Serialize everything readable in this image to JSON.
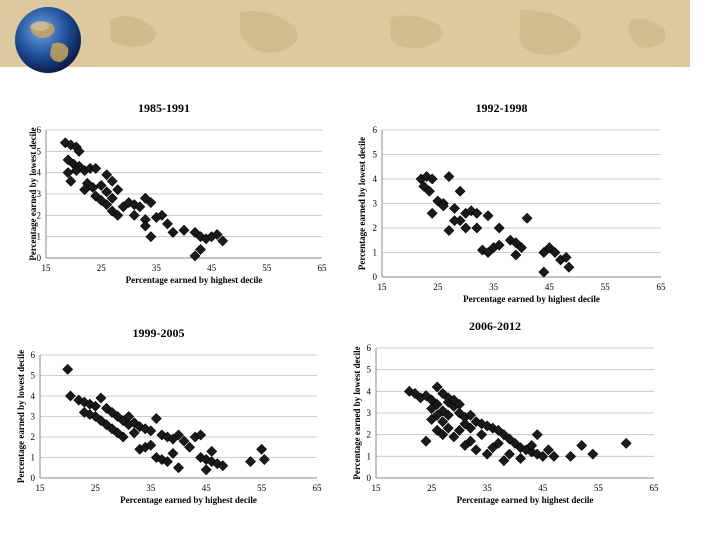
{
  "slide": {
    "title_banner": "world-map banner",
    "globe": "globe-icon"
  },
  "colors": {
    "banner": "#d9c89b",
    "marker": "#1a1a1a",
    "grid": "#bfbfbf"
  },
  "chart_data": [
    {
      "type": "scatter",
      "title": "1985-1991",
      "xlabel": "Percentage earned by highest decile",
      "ylabel": "Percentage earned by lowest decile",
      "xlim": [
        15,
        65
      ],
      "ylim": [
        0,
        6
      ],
      "xticks": [
        15,
        25,
        35,
        45,
        55,
        65
      ],
      "yticks": [
        0,
        1,
        2,
        3,
        4,
        5,
        6
      ],
      "points": [
        [
          18.5,
          5.4
        ],
        [
          19.5,
          5.3
        ],
        [
          20.5,
          5.2
        ],
        [
          21,
          5.0
        ],
        [
          19,
          4.6
        ],
        [
          20,
          4.4
        ],
        [
          21,
          4.3
        ],
        [
          20.5,
          4.1
        ],
        [
          19,
          4.0
        ],
        [
          22,
          4.1
        ],
        [
          23,
          4.2
        ],
        [
          24,
          4.2
        ],
        [
          22.5,
          3.5
        ],
        [
          23.5,
          3.3
        ],
        [
          25,
          3.4
        ],
        [
          26,
          3.1
        ],
        [
          27,
          2.8
        ],
        [
          24,
          2.9
        ],
        [
          25,
          2.7
        ],
        [
          26,
          2.5
        ],
        [
          27,
          2.2
        ],
        [
          28,
          2.0
        ],
        [
          29,
          2.4
        ],
        [
          30,
          2.6
        ],
        [
          31,
          2.5
        ],
        [
          32,
          2.4
        ],
        [
          33,
          2.8
        ],
        [
          34,
          2.6
        ],
        [
          31,
          2.0
        ],
        [
          33,
          1.8
        ],
        [
          35,
          1.9
        ],
        [
          36,
          2.0
        ],
        [
          37,
          1.6
        ],
        [
          38,
          1.2
        ],
        [
          34,
          1.0
        ],
        [
          33,
          1.5
        ],
        [
          40,
          1.3
        ],
        [
          42,
          1.2
        ],
        [
          43,
          1.0
        ],
        [
          44,
          0.9
        ],
        [
          45,
          1.0
        ],
        [
          46,
          1.1
        ],
        [
          47,
          0.8
        ],
        [
          43,
          0.4
        ],
        [
          42,
          0.1
        ],
        [
          26,
          3.9
        ],
        [
          27,
          3.6
        ],
        [
          28,
          3.2
        ],
        [
          19.5,
          3.6
        ],
        [
          22,
          3.2
        ]
      ]
    },
    {
      "type": "scatter",
      "title": "1992-1998",
      "xlabel": "Percentage earned by highest decile",
      "ylabel": "Percentage earned by lowest decile",
      "xlim": [
        15,
        65
      ],
      "ylim": [
        0,
        6
      ],
      "xticks": [
        15,
        25,
        35,
        45,
        55,
        65
      ],
      "yticks": [
        0,
        1,
        2,
        3,
        4,
        5,
        6
      ],
      "points": [
        [
          22,
          4.0
        ],
        [
          23,
          4.1
        ],
        [
          24,
          4.0
        ],
        [
          22.5,
          3.7
        ],
        [
          23.5,
          3.5
        ],
        [
          25,
          3.1
        ],
        [
          26,
          3.0
        ],
        [
          27,
          4.1
        ],
        [
          28,
          2.8
        ],
        [
          29,
          3.5
        ],
        [
          30,
          2.6
        ],
        [
          31,
          2.7
        ],
        [
          29,
          2.3
        ],
        [
          32,
          2.0
        ],
        [
          33,
          1.1
        ],
        [
          34,
          1.0
        ],
        [
          35,
          1.2
        ],
        [
          36,
          1.3
        ],
        [
          34,
          2.5
        ],
        [
          32,
          2.6
        ],
        [
          30,
          2.0
        ],
        [
          27,
          1.9
        ],
        [
          24,
          2.6
        ],
        [
          28,
          2.3
        ],
        [
          38,
          1.5
        ],
        [
          39,
          1.4
        ],
        [
          40,
          1.2
        ],
        [
          41,
          2.4
        ],
        [
          39,
          0.9
        ],
        [
          44,
          1.0
        ],
        [
          45,
          1.2
        ],
        [
          46,
          1.0
        ],
        [
          47,
          0.7
        ],
        [
          48,
          0.8
        ],
        [
          48.5,
          0.4
        ],
        [
          44,
          0.2
        ],
        [
          36,
          2.0
        ],
        [
          26,
          2.9
        ]
      ]
    },
    {
      "type": "scatter",
      "title": "1999-2005",
      "xlabel": "Percentage earned by highest decile",
      "ylabel": "Percentage earned by lowest decile",
      "xlim": [
        15,
        65
      ],
      "ylim": [
        0,
        6
      ],
      "xticks": [
        15,
        25,
        35,
        45,
        55,
        65
      ],
      "yticks": [
        0,
        1,
        2,
        3,
        4,
        5,
        6
      ],
      "points": [
        [
          20,
          5.3
        ],
        [
          20.5,
          4.0
        ],
        [
          22,
          3.8
        ],
        [
          23,
          3.7
        ],
        [
          24,
          3.6
        ],
        [
          25,
          3.5
        ],
        [
          26,
          3.9
        ],
        [
          27,
          3.4
        ],
        [
          28,
          3.2
        ],
        [
          29,
          3.0
        ],
        [
          30,
          2.8
        ],
        [
          31,
          2.6
        ],
        [
          32,
          2.7
        ],
        [
          33,
          2.5
        ],
        [
          34,
          2.4
        ],
        [
          35,
          2.3
        ],
        [
          36,
          2.9
        ],
        [
          37,
          2.1
        ],
        [
          38,
          2.0
        ],
        [
          39,
          1.9
        ],
        [
          40,
          2.1
        ],
        [
          41,
          1.8
        ],
        [
          42,
          1.5
        ],
        [
          43,
          2.0
        ],
        [
          44,
          1.0
        ],
        [
          45,
          0.9
        ],
        [
          46,
          0.8
        ],
        [
          47,
          0.7
        ],
        [
          48,
          0.6
        ],
        [
          36,
          1.0
        ],
        [
          37,
          0.9
        ],
        [
          38,
          0.8
        ],
        [
          39,
          1.2
        ],
        [
          40,
          0.5
        ],
        [
          33,
          1.4
        ],
        [
          34,
          1.5
        ],
        [
          30,
          2.0
        ],
        [
          29,
          2.2
        ],
        [
          28,
          2.4
        ],
        [
          27,
          2.6
        ],
        [
          26,
          2.8
        ],
        [
          25,
          3.0
        ],
        [
          24,
          3.1
        ],
        [
          23,
          3.2
        ],
        [
          31,
          3.0
        ],
        [
          32,
          2.2
        ],
        [
          35,
          1.6
        ],
        [
          44,
          2.1
        ],
        [
          46,
          1.3
        ],
        [
          53,
          0.8
        ],
        [
          55,
          1.4
        ],
        [
          55.5,
          0.9
        ],
        [
          45,
          0.4
        ]
      ]
    },
    {
      "type": "scatter",
      "title": "2006-2012",
      "xlabel": "Percentage earned by highest decile",
      "ylabel": "Percentage earned by lowest decile",
      "xlim": [
        15,
        65
      ],
      "ylim": [
        0,
        6
      ],
      "xticks": [
        15,
        25,
        35,
        45,
        55,
        65
      ],
      "yticks": [
        0,
        1,
        2,
        3,
        4,
        5,
        6
      ],
      "points": [
        [
          21,
          4.0
        ],
        [
          22,
          3.9
        ],
        [
          23,
          3.7
        ],
        [
          24,
          3.8
        ],
        [
          25,
          3.6
        ],
        [
          26,
          4.2
        ],
        [
          27,
          3.9
        ],
        [
          28,
          3.5
        ],
        [
          29,
          3.3
        ],
        [
          30,
          3.0
        ],
        [
          31,
          2.8
        ],
        [
          32,
          2.9
        ],
        [
          33,
          2.6
        ],
        [
          34,
          2.5
        ],
        [
          35,
          2.4
        ],
        [
          36,
          2.3
        ],
        [
          37,
          2.2
        ],
        [
          38,
          2.0
        ],
        [
          39,
          1.8
        ],
        [
          40,
          1.6
        ],
        [
          41,
          1.4
        ],
        [
          42,
          1.3
        ],
        [
          43,
          1.2
        ],
        [
          44,
          1.1
        ],
        [
          45,
          1.0
        ],
        [
          24,
          1.7
        ],
        [
          26,
          2.2
        ],
        [
          27,
          2.6
        ],
        [
          28,
          2.9
        ],
        [
          29,
          1.9
        ],
        [
          30,
          2.2
        ],
        [
          31,
          1.5
        ],
        [
          32,
          1.7
        ],
        [
          33,
          1.3
        ],
        [
          34,
          2.0
        ],
        [
          35,
          1.1
        ],
        [
          36,
          1.4
        ],
        [
          37,
          1.6
        ],
        [
          38,
          0.8
        ],
        [
          39,
          1.1
        ],
        [
          41,
          0.9
        ],
        [
          43,
          1.5
        ],
        [
          44,
          2.0
        ],
        [
          46,
          1.3
        ],
        [
          47,
          1.0
        ],
        [
          50,
          1.0
        ],
        [
          52,
          1.5
        ],
        [
          54,
          1.1
        ],
        [
          60,
          1.6
        ],
        [
          25,
          3.2
        ],
        [
          26,
          3.4
        ],
        [
          27,
          3.1
        ],
        [
          28,
          3.7
        ],
        [
          29,
          3.6
        ],
        [
          30,
          3.4
        ],
        [
          25,
          2.7
        ],
        [
          26,
          2.9
        ],
        [
          27,
          2.0
        ],
        [
          28,
          2.3
        ],
        [
          31,
          2.5
        ],
        [
          32,
          2.3
        ]
      ]
    }
  ]
}
